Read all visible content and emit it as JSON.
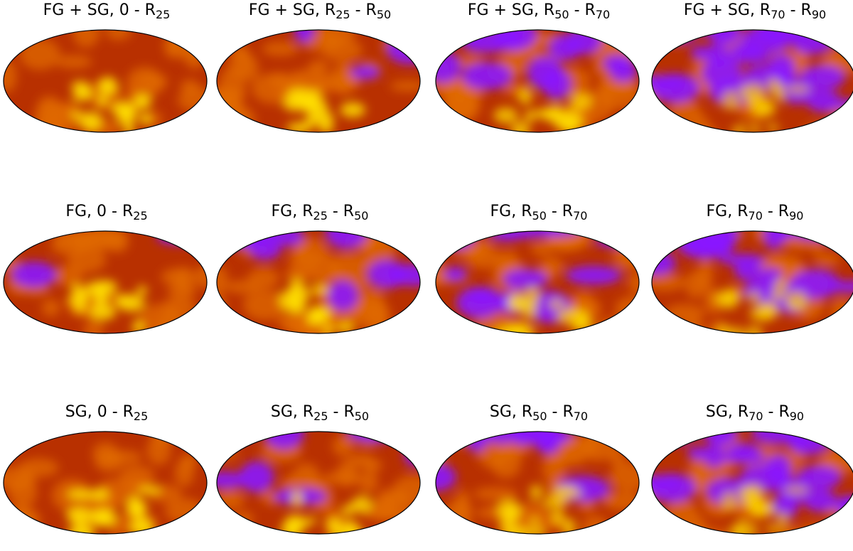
{
  "figure": {
    "panels": [
      {
        "title": [
          "FG + SG, 0 - R",
          "25",
          ""
        ],
        "purple_level": 0.0
      },
      {
        "title": [
          "FG + SG, R",
          "25",
          " - R",
          "50"
        ],
        "purple_level": 0.1
      },
      {
        "title": [
          "FG + SG, R",
          "50",
          " - R",
          "70"
        ],
        "purple_level": 0.4
      },
      {
        "title": [
          "FG + SG, R",
          "70",
          " - R",
          "90"
        ],
        "purple_level": 0.75
      },
      {
        "title": [
          "FG, 0 - R",
          "25",
          ""
        ],
        "purple_level": 0.08
      },
      {
        "title": [
          "FG, R",
          "25",
          " - R",
          "50"
        ],
        "purple_level": 0.28
      },
      {
        "title": [
          "FG, R",
          "50",
          " - R",
          "70"
        ],
        "purple_level": 0.48
      },
      {
        "title": [
          "FG, R",
          "70",
          " - R",
          "90"
        ],
        "purple_level": 0.7
      },
      {
        "title": [
          "SG, 0 - R",
          "25",
          ""
        ],
        "purple_level": 0.0
      },
      {
        "title": [
          "SG, R",
          "25",
          " - R",
          "50"
        ],
        "purple_level": 0.22
      },
      {
        "title": [
          "SG, R",
          "50",
          " - R",
          "70"
        ],
        "purple_level": 0.38
      },
      {
        "title": [
          "SG, R",
          "70",
          " - R",
          "90"
        ],
        "purple_level": 0.78
      }
    ],
    "colors": {
      "purple": "#8a14ff",
      "dark_red": "#b83000",
      "orange": "#e06a00",
      "yellow": "#ffe000",
      "outline": "#000000"
    }
  }
}
